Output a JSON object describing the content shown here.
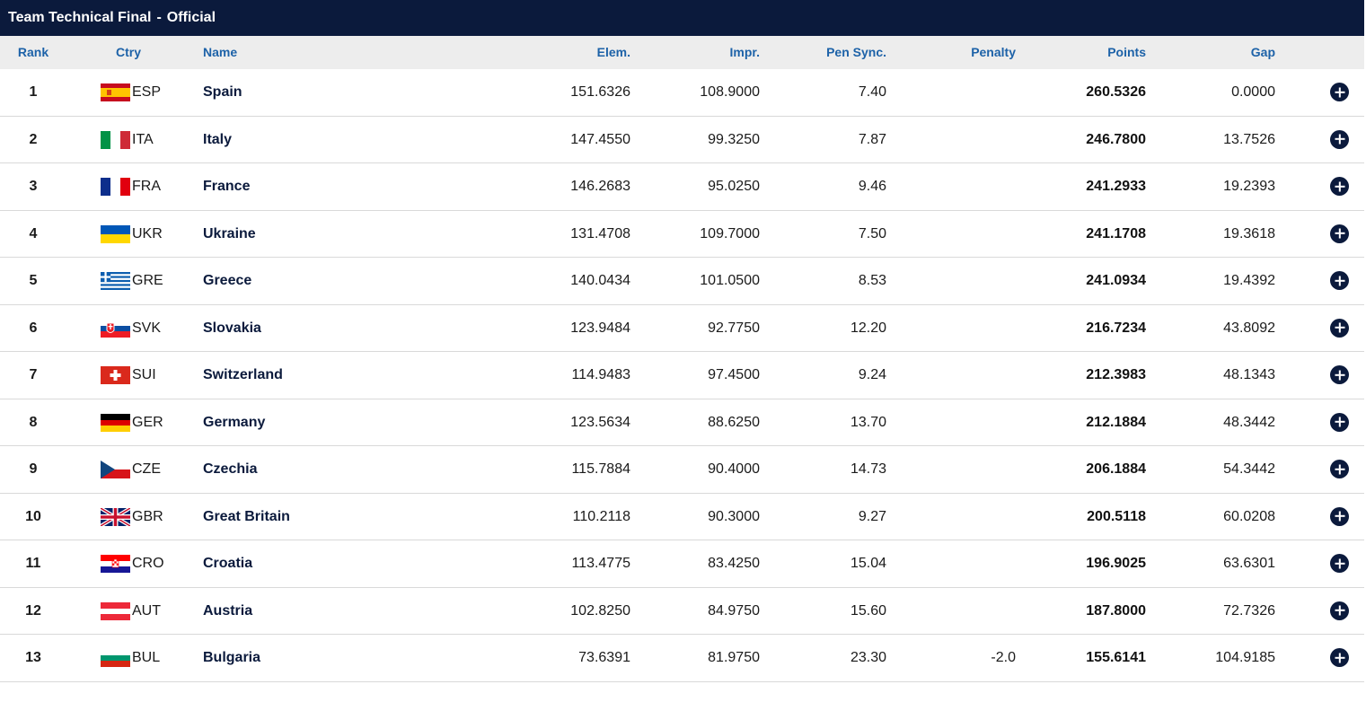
{
  "title": {
    "event": "Team Technical Final",
    "separator": "-",
    "status": "Official"
  },
  "columns": {
    "rank": "Rank",
    "ctry": "Ctry",
    "name": "Name",
    "elem": "Elem.",
    "impr": "Impr.",
    "pen_sync": "Pen Sync.",
    "penalty": "Penalty",
    "points": "Points",
    "gap": "Gap"
  },
  "rows": [
    {
      "rank": "1",
      "code": "ESP",
      "name": "Spain",
      "elem": "151.6326",
      "impr": "108.9000",
      "pen_sync": "7.40",
      "penalty": "",
      "points": "260.5326",
      "gap": "0.0000",
      "flag_icon": "spain-flag-icon"
    },
    {
      "rank": "2",
      "code": "ITA",
      "name": "Italy",
      "elem": "147.4550",
      "impr": "99.3250",
      "pen_sync": "7.87",
      "penalty": "",
      "points": "246.7800",
      "gap": "13.7526",
      "flag_icon": "italy-flag-icon"
    },
    {
      "rank": "3",
      "code": "FRA",
      "name": "France",
      "elem": "146.2683",
      "impr": "95.0250",
      "pen_sync": "9.46",
      "penalty": "",
      "points": "241.2933",
      "gap": "19.2393",
      "flag_icon": "france-flag-icon"
    },
    {
      "rank": "4",
      "code": "UKR",
      "name": "Ukraine",
      "elem": "131.4708",
      "impr": "109.7000",
      "pen_sync": "7.50",
      "penalty": "",
      "points": "241.1708",
      "gap": "19.3618",
      "flag_icon": "ukraine-flag-icon"
    },
    {
      "rank": "5",
      "code": "GRE",
      "name": "Greece",
      "elem": "140.0434",
      "impr": "101.0500",
      "pen_sync": "8.53",
      "penalty": "",
      "points": "241.0934",
      "gap": "19.4392",
      "flag_icon": "greece-flag-icon"
    },
    {
      "rank": "6",
      "code": "SVK",
      "name": "Slovakia",
      "elem": "123.9484",
      "impr": "92.7750",
      "pen_sync": "12.20",
      "penalty": "",
      "points": "216.7234",
      "gap": "43.8092",
      "flag_icon": "slovakia-flag-icon"
    },
    {
      "rank": "7",
      "code": "SUI",
      "name": "Switzerland",
      "elem": "114.9483",
      "impr": "97.4500",
      "pen_sync": "9.24",
      "penalty": "",
      "points": "212.3983",
      "gap": "48.1343",
      "flag_icon": "switzerland-flag-icon"
    },
    {
      "rank": "8",
      "code": "GER",
      "name": "Germany",
      "elem": "123.5634",
      "impr": "88.6250",
      "pen_sync": "13.70",
      "penalty": "",
      "points": "212.1884",
      "gap": "48.3442",
      "flag_icon": "germany-flag-icon"
    },
    {
      "rank": "9",
      "code": "CZE",
      "name": "Czechia",
      "elem": "115.7884",
      "impr": "90.4000",
      "pen_sync": "14.73",
      "penalty": "",
      "points": "206.1884",
      "gap": "54.3442",
      "flag_icon": "czechia-flag-icon"
    },
    {
      "rank": "10",
      "code": "GBR",
      "name": "Great Britain",
      "elem": "110.2118",
      "impr": "90.3000",
      "pen_sync": "9.27",
      "penalty": "",
      "points": "200.5118",
      "gap": "60.0208",
      "flag_icon": "great-britain-flag-icon"
    },
    {
      "rank": "11",
      "code": "CRO",
      "name": "Croatia",
      "elem": "113.4775",
      "impr": "83.4250",
      "pen_sync": "15.04",
      "penalty": "",
      "points": "196.9025",
      "gap": "63.6301",
      "flag_icon": "croatia-flag-icon"
    },
    {
      "rank": "12",
      "code": "AUT",
      "name": "Austria",
      "elem": "102.8250",
      "impr": "84.9750",
      "pen_sync": "15.60",
      "penalty": "",
      "points": "187.8000",
      "gap": "72.7326",
      "flag_icon": "austria-flag-icon"
    },
    {
      "rank": "13",
      "code": "BUL",
      "name": "Bulgaria",
      "elem": "73.6391",
      "impr": "81.9750",
      "pen_sync": "23.30",
      "penalty": "-2.0",
      "points": "155.6141",
      "gap": "104.9185",
      "flag_icon": "bulgaria-flag-icon"
    }
  ],
  "colors": {
    "title_bg": "#0b1a3c",
    "header_bg": "#ededed",
    "header_text": "#1d62a8",
    "expand_button": "#0b1a3c"
  },
  "expand_icon": "plus-circle-icon"
}
